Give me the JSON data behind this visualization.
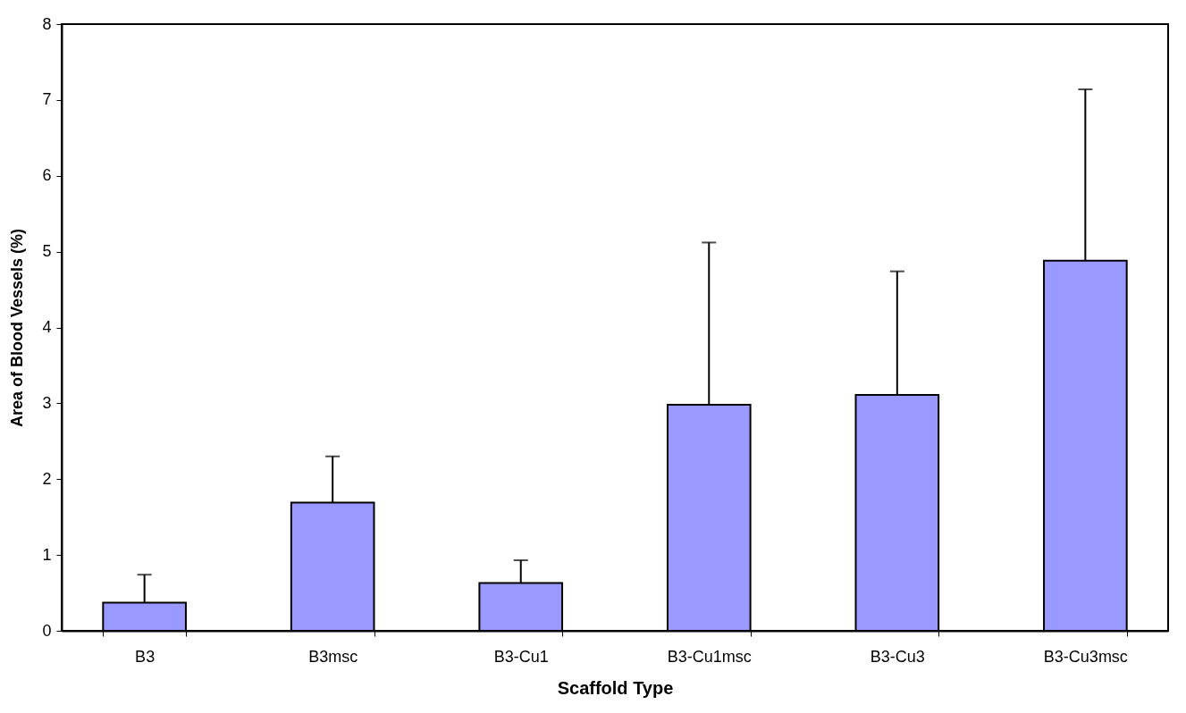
{
  "chart_data": {
    "type": "bar",
    "xlabel": "Scaffold Type",
    "ylabel": "Area of Blood Vessels (%)",
    "categories": [
      "B3",
      "B3msc",
      "B3-Cu1",
      "B3-Cu1msc",
      "B3-Cu3",
      "B3-Cu3msc"
    ],
    "values": [
      0.37,
      1.69,
      0.63,
      2.98,
      3.11,
      4.88
    ],
    "errors": [
      [
        0.37,
        0.74
      ],
      [
        1.69,
        2.3
      ],
      [
        0.63,
        0.93
      ],
      [
        2.98,
        5.12
      ],
      [
        3.11,
        4.74
      ],
      [
        4.88,
        7.14
      ]
    ],
    "color": "#9999ff",
    "ylim": [
      0,
      8
    ],
    "yticks": [
      0,
      1,
      2,
      3,
      4,
      5,
      6,
      7,
      8
    ]
  }
}
